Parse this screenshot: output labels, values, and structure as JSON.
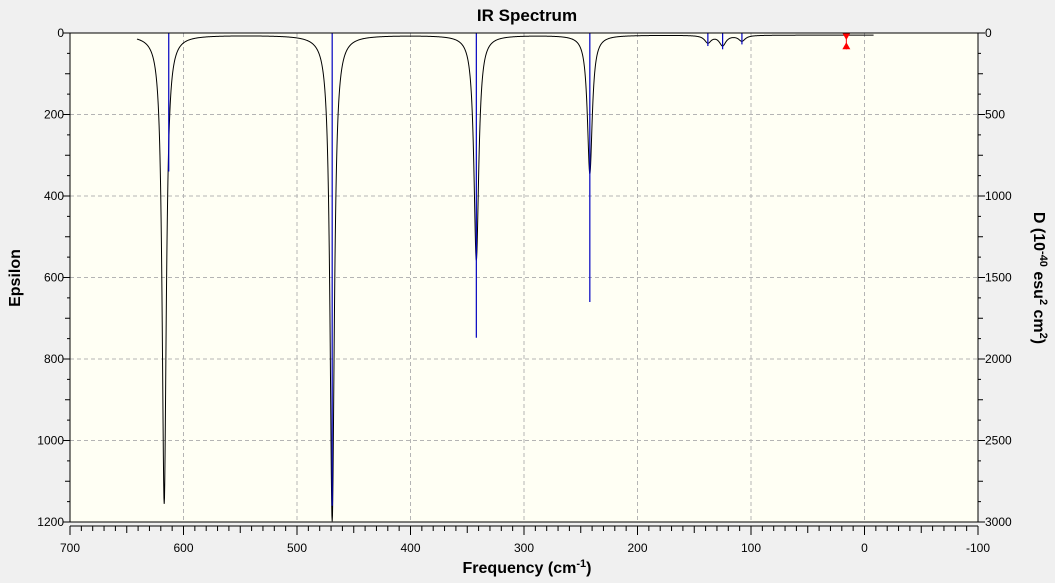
{
  "chart_data": {
    "type": "line",
    "title": "IR Spectrum",
    "xlabel": {
      "main": "Frequency (cm",
      "sup": "-1",
      "close": ")"
    },
    "ylabel_left": "Epsilon",
    "ylabel_right": {
      "p1": "D (10",
      "sup1": "-40",
      "p2": " esu",
      "sup2": "2",
      "p3": " cm",
      "sup3": "2",
      "p4": ")"
    },
    "xlim": [
      700,
      -100
    ],
    "ylim_left": [
      0,
      1200
    ],
    "ylim_right": [
      0,
      3000
    ],
    "x_ticks": [
      "700",
      "600",
      "500",
      "400",
      "300",
      "200",
      "100",
      "0",
      "-100"
    ],
    "y_ticks_left": [
      "0",
      "200",
      "400",
      "600",
      "800",
      "1000",
      "1200"
    ],
    "y_ticks_right": [
      "0",
      "500",
      "1000",
      "1500",
      "2000",
      "2500",
      "3000"
    ],
    "grid": true,
    "colors": {
      "spectrum": "#000000",
      "sticks": "#0000c0",
      "marker": "#ff0000",
      "plot_bg": "#fffff4",
      "grid": "#b4b4b4"
    },
    "curve_range": [
      641,
      -8
    ],
    "curve_baseline": 5,
    "peaks": [
      {
        "x": 617,
        "epsilon": 1150,
        "width": 2.2
      },
      {
        "x": 469,
        "epsilon": 1193,
        "width": 2.3
      },
      {
        "x": 342,
        "epsilon": 552,
        "width": 2.6
      },
      {
        "x": 242,
        "epsilon": 340,
        "width": 2.6
      },
      {
        "x": 138,
        "epsilon": 18,
        "width": 3.5
      },
      {
        "x": 125,
        "epsilon": 25,
        "width": 3.5
      },
      {
        "x": 108,
        "epsilon": 14,
        "width": 3.5
      }
    ],
    "sticks": [
      {
        "x": 613,
        "D": 850
      },
      {
        "x": 469,
        "D": 2900
      },
      {
        "x": 342,
        "D": 1870
      },
      {
        "x": 242,
        "D": 1650
      },
      {
        "x": 138,
        "D": 80
      },
      {
        "x": 125,
        "D": 100
      },
      {
        "x": 108,
        "D": 70
      }
    ],
    "marker": {
      "x": 16,
      "epsilon_top": 0,
      "epsilon_bottom": 40
    }
  }
}
